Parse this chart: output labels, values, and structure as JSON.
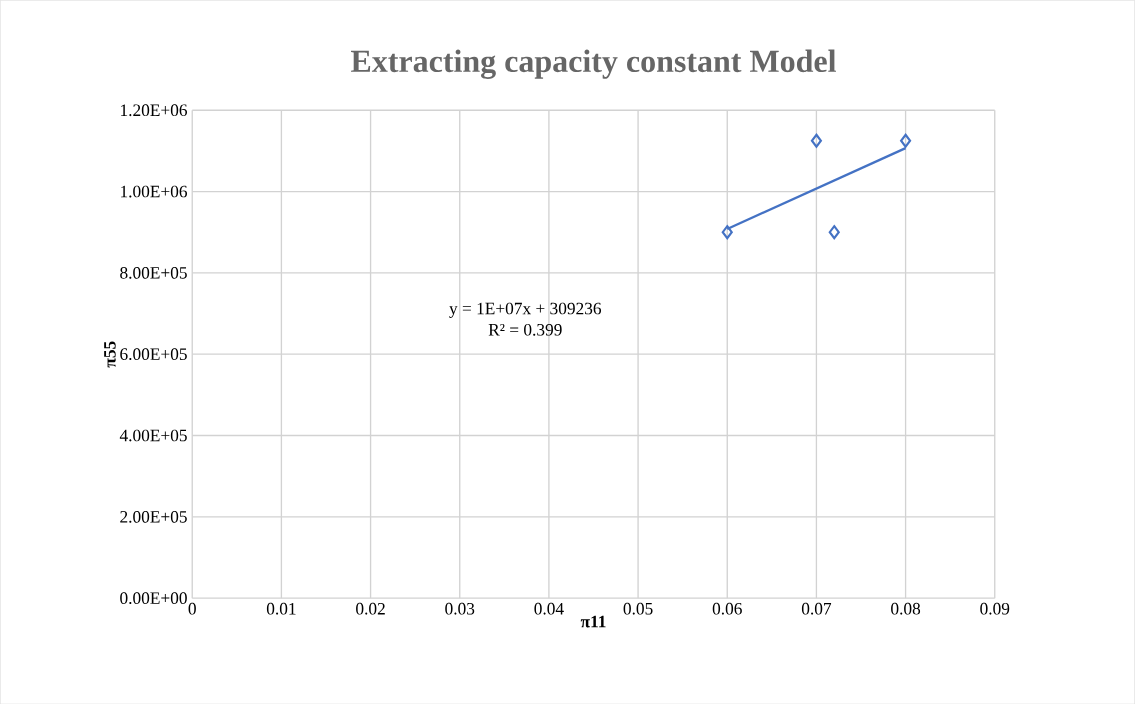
{
  "chart_data": {
    "type": "scatter",
    "title": "Extracting capacity constant Model",
    "xlabel": "π11",
    "ylabel": "π55",
    "series": [
      {
        "color": "#4472c4",
        "marker": "diamond",
        "x": [
          0.06,
          0.07,
          0.072,
          0.08
        ],
        "values": [
          900000,
          1125000,
          900000,
          1125000
        ]
      },
      {
        "type": "line",
        "color": "#4472c4",
        "marker": "none",
        "line_style": "solid",
        "x": [
          0.06,
          0.08
        ],
        "values": [
          908000,
          1107000
        ]
      }
    ],
    "annotations": [
      "y = 1E+07x + 309236",
      "R² = 0.399"
    ],
    "xlim": [
      0,
      0.09
    ],
    "xticks": [
      0,
      0.01,
      0.02,
      0.03,
      0.04,
      0.05,
      0.06,
      0.07,
      0.08,
      0.09
    ],
    "ylim": [
      0,
      1200000
    ],
    "yticks": [
      {
        "value": 0,
        "label": "0.00E+00"
      },
      {
        "value": 200000,
        "label": "2.00E+05"
      },
      {
        "value": 400000,
        "label": "4.00E+05"
      },
      {
        "value": 600000,
        "label": "6.00E+05"
      },
      {
        "value": 800000,
        "label": "8.00E+05"
      },
      {
        "value": 1000000,
        "label": "1.00E+06"
      },
      {
        "value": 1200000,
        "label": "1.20E+06"
      }
    ],
    "grid": true
  }
}
